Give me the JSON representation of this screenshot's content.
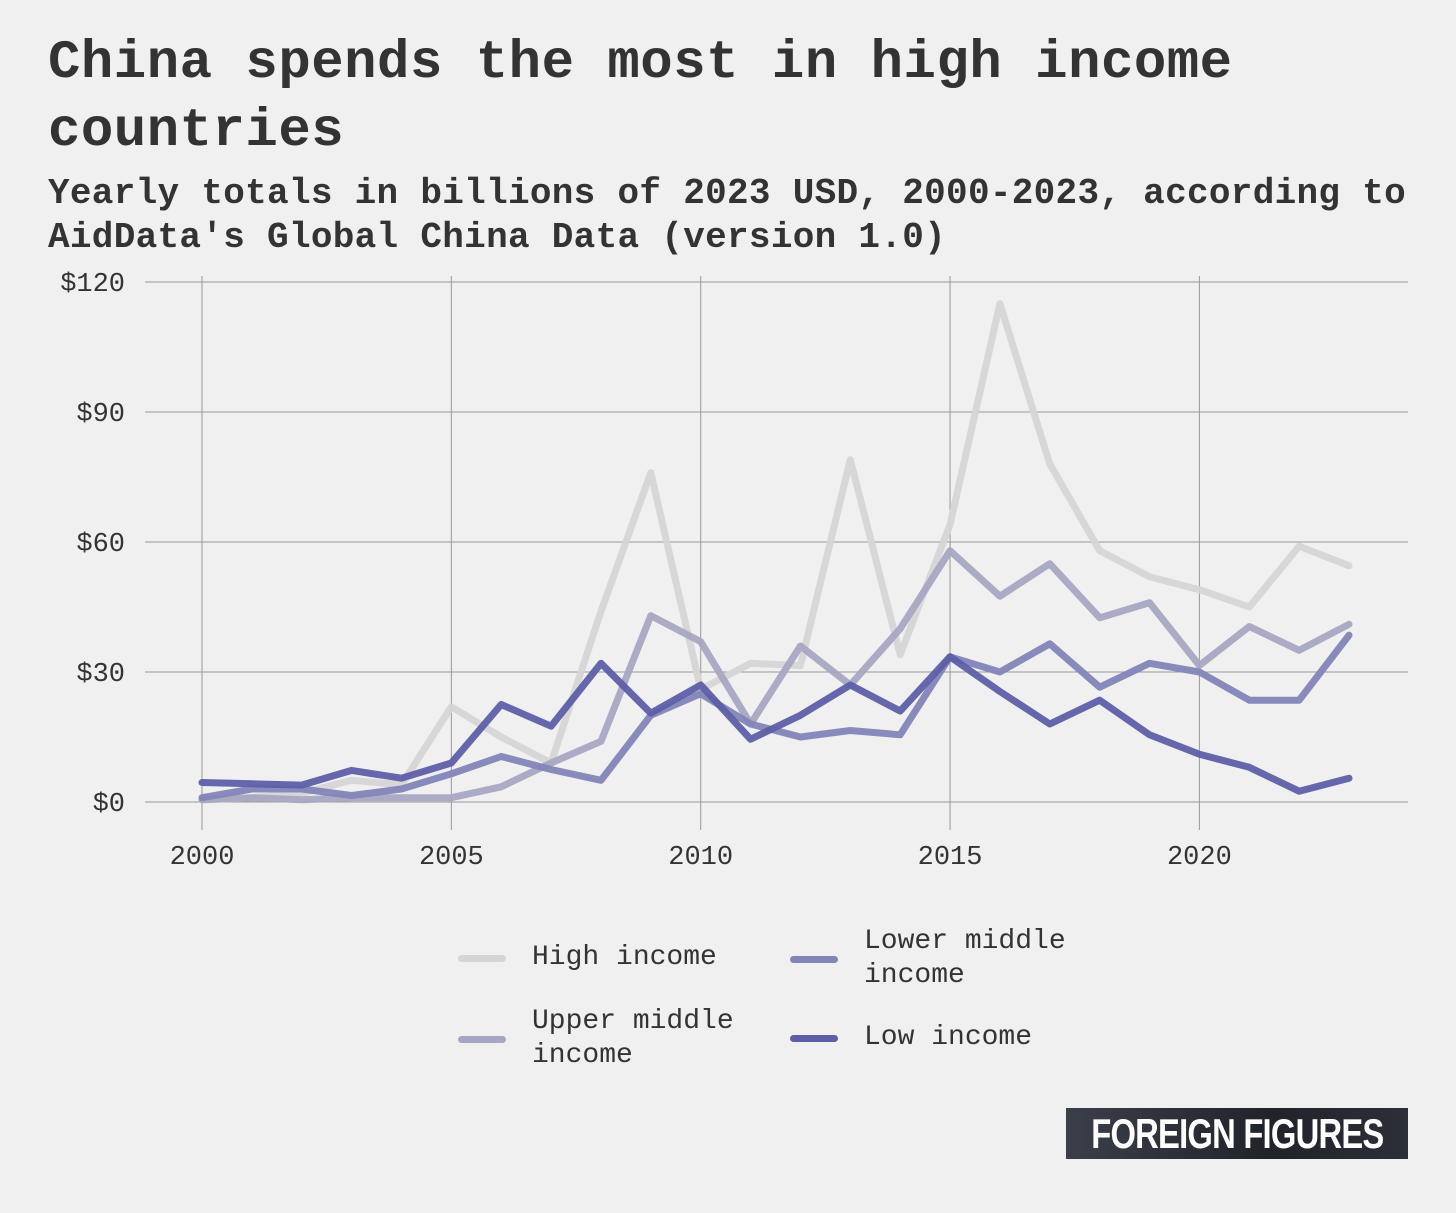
{
  "chart_data": {
    "type": "line",
    "title": "China spends the most in high income countries",
    "subtitle": "Yearly totals in billions of 2023 USD, 2000-2023, according to AidData's Global China Data (version 1.0)",
    "xlabel": "",
    "ylabel": "",
    "x": [
      2000,
      2001,
      2002,
      2003,
      2004,
      2005,
      2006,
      2007,
      2008,
      2009,
      2010,
      2011,
      2012,
      2013,
      2014,
      2015,
      2016,
      2017,
      2018,
      2019,
      2020,
      2021,
      2022,
      2023
    ],
    "xlim": [
      2000,
      2023
    ],
    "ylim": [
      0,
      120
    ],
    "x_ticks": [
      2000,
      2005,
      2010,
      2015,
      2020
    ],
    "x_tick_labels": [
      "2000",
      "2005",
      "2010",
      "2015",
      "2020"
    ],
    "y_ticks": [
      0,
      30,
      60,
      90,
      120
    ],
    "y_tick_labels": [
      "$0",
      "$30",
      "$60",
      "$90",
      "$120"
    ],
    "grid": true,
    "legend_position": "bottom",
    "series": [
      {
        "name": "High income",
        "color": "#d5d5d5",
        "values": [
          0.5,
          1,
          2,
          5,
          4,
          22,
          15,
          9,
          44,
          76,
          26,
          32,
          31.5,
          79,
          34,
          64,
          115,
          78,
          58,
          52,
          49,
          45,
          59,
          54.5
        ]
      },
      {
        "name": "Upper middle income",
        "color": "#a6a6c2",
        "values": [
          0.5,
          1,
          0.5,
          1,
          1,
          1,
          3.5,
          9,
          14,
          43,
          37,
          18,
          36,
          27,
          40,
          58,
          47.5,
          55,
          42.5,
          46,
          31.5,
          40.5,
          35,
          41
        ]
      },
      {
        "name": "Lower middle income",
        "color": "#8384b8",
        "values": [
          1,
          3,
          3,
          1.5,
          3,
          6.5,
          10.5,
          7.5,
          5,
          20,
          25,
          18,
          15,
          16.5,
          15.5,
          33.5,
          30,
          36.5,
          26.5,
          32,
          30,
          23.5,
          23.5,
          38.5
        ]
      },
      {
        "name": "Low income",
        "color": "#5d5ea6",
        "values": [
          4.5,
          4.2,
          3.9,
          7.3,
          5.5,
          9,
          22.5,
          17.5,
          32,
          20.5,
          27,
          14.5,
          20,
          27,
          21,
          33.5,
          25.5,
          18,
          23.5,
          15.5,
          11,
          8,
          2.5,
          5.5
        ]
      }
    ]
  },
  "legend": {
    "items": [
      {
        "label": "High income",
        "color": "#d5d5d5"
      },
      {
        "label": "Lower middle\nincome",
        "color": "#8384b8"
      },
      {
        "label": "Upper middle\nincome",
        "color": "#a6a6c2"
      },
      {
        "label": "Low income",
        "color": "#5d5ea6"
      }
    ]
  },
  "branding": {
    "logo_text": "FOREIGN FIGURES"
  }
}
